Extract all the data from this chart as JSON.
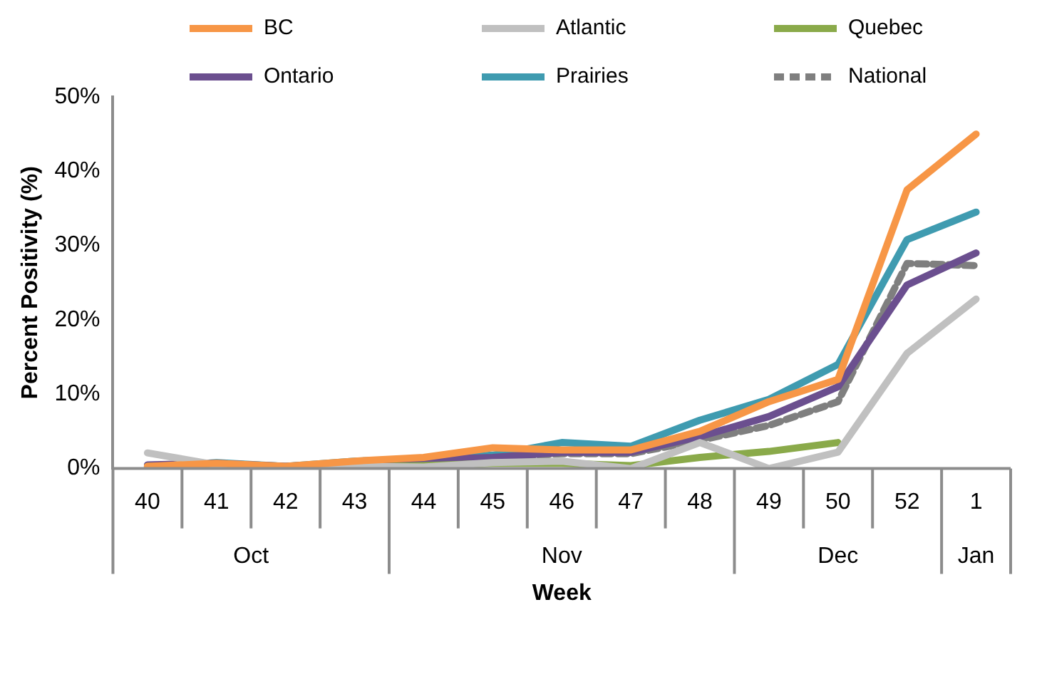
{
  "chart_data": {
    "type": "line",
    "xlabel": "Week",
    "ylabel": "Percent Positivity (%)",
    "categories": [
      "40",
      "41",
      "42",
      "43",
      "44",
      "45",
      "46",
      "47",
      "48",
      "49",
      "50",
      "52",
      "1"
    ],
    "ylim": [
      0,
      50
    ],
    "yticks": [
      {
        "value": 0,
        "label": "0%"
      },
      {
        "value": 10,
        "label": "10%"
      },
      {
        "value": 20,
        "label": "20%"
      },
      {
        "value": 30,
        "label": "30%"
      },
      {
        "value": 40,
        "label": "40%"
      },
      {
        "value": 50,
        "label": "50%"
      }
    ],
    "grid": false,
    "legend": "top",
    "marker": "none",
    "annotations": [
      "Oct",
      "Nov",
      "Dec",
      "Jan"
    ],
    "series": [
      {
        "name": "BC",
        "color": "#f79646",
        "values": [
          0.3,
          0.7,
          0.3,
          1,
          1.5,
          2.8,
          2.5,
          2.5,
          5,
          9,
          12,
          37.5,
          45
        ]
      },
      {
        "name": "Atlantic",
        "color": "#c0c0c0",
        "values": [
          2.1,
          0.5,
          0.1,
          0.3,
          0.2,
          0.8,
          1,
          0,
          3.5,
          0,
          2.2,
          15.5,
          22.8
        ]
      },
      {
        "name": "Quebec",
        "color": "#8aaa4a",
        "values": [
          0.3,
          0.3,
          0.1,
          0.2,
          0.4,
          0.7,
          0.7,
          0.4,
          1.5,
          2.3,
          3.5,
          null,
          null
        ]
      },
      {
        "name": "Ontario",
        "color": "#6b4f8f",
        "values": [
          0.5,
          0.7,
          0.3,
          0.8,
          1.2,
          1.5,
          2.2,
          2.2,
          4.3,
          7,
          11,
          24.7,
          29
        ]
      },
      {
        "name": "Prairies",
        "color": "#3f9bb0",
        "values": [
          0.2,
          0.8,
          0.3,
          1,
          1.3,
          1.8,
          3.5,
          3,
          6.5,
          9.3,
          14,
          30.8,
          34.5
        ]
      },
      {
        "name": "National",
        "color": "#7f7f7f",
        "line_style": "dashed",
        "values": [
          0.3,
          0.5,
          0.2,
          0.7,
          1,
          1.4,
          2,
          2,
          3.8,
          5.8,
          9,
          27.6,
          27.3
        ]
      }
    ]
  }
}
